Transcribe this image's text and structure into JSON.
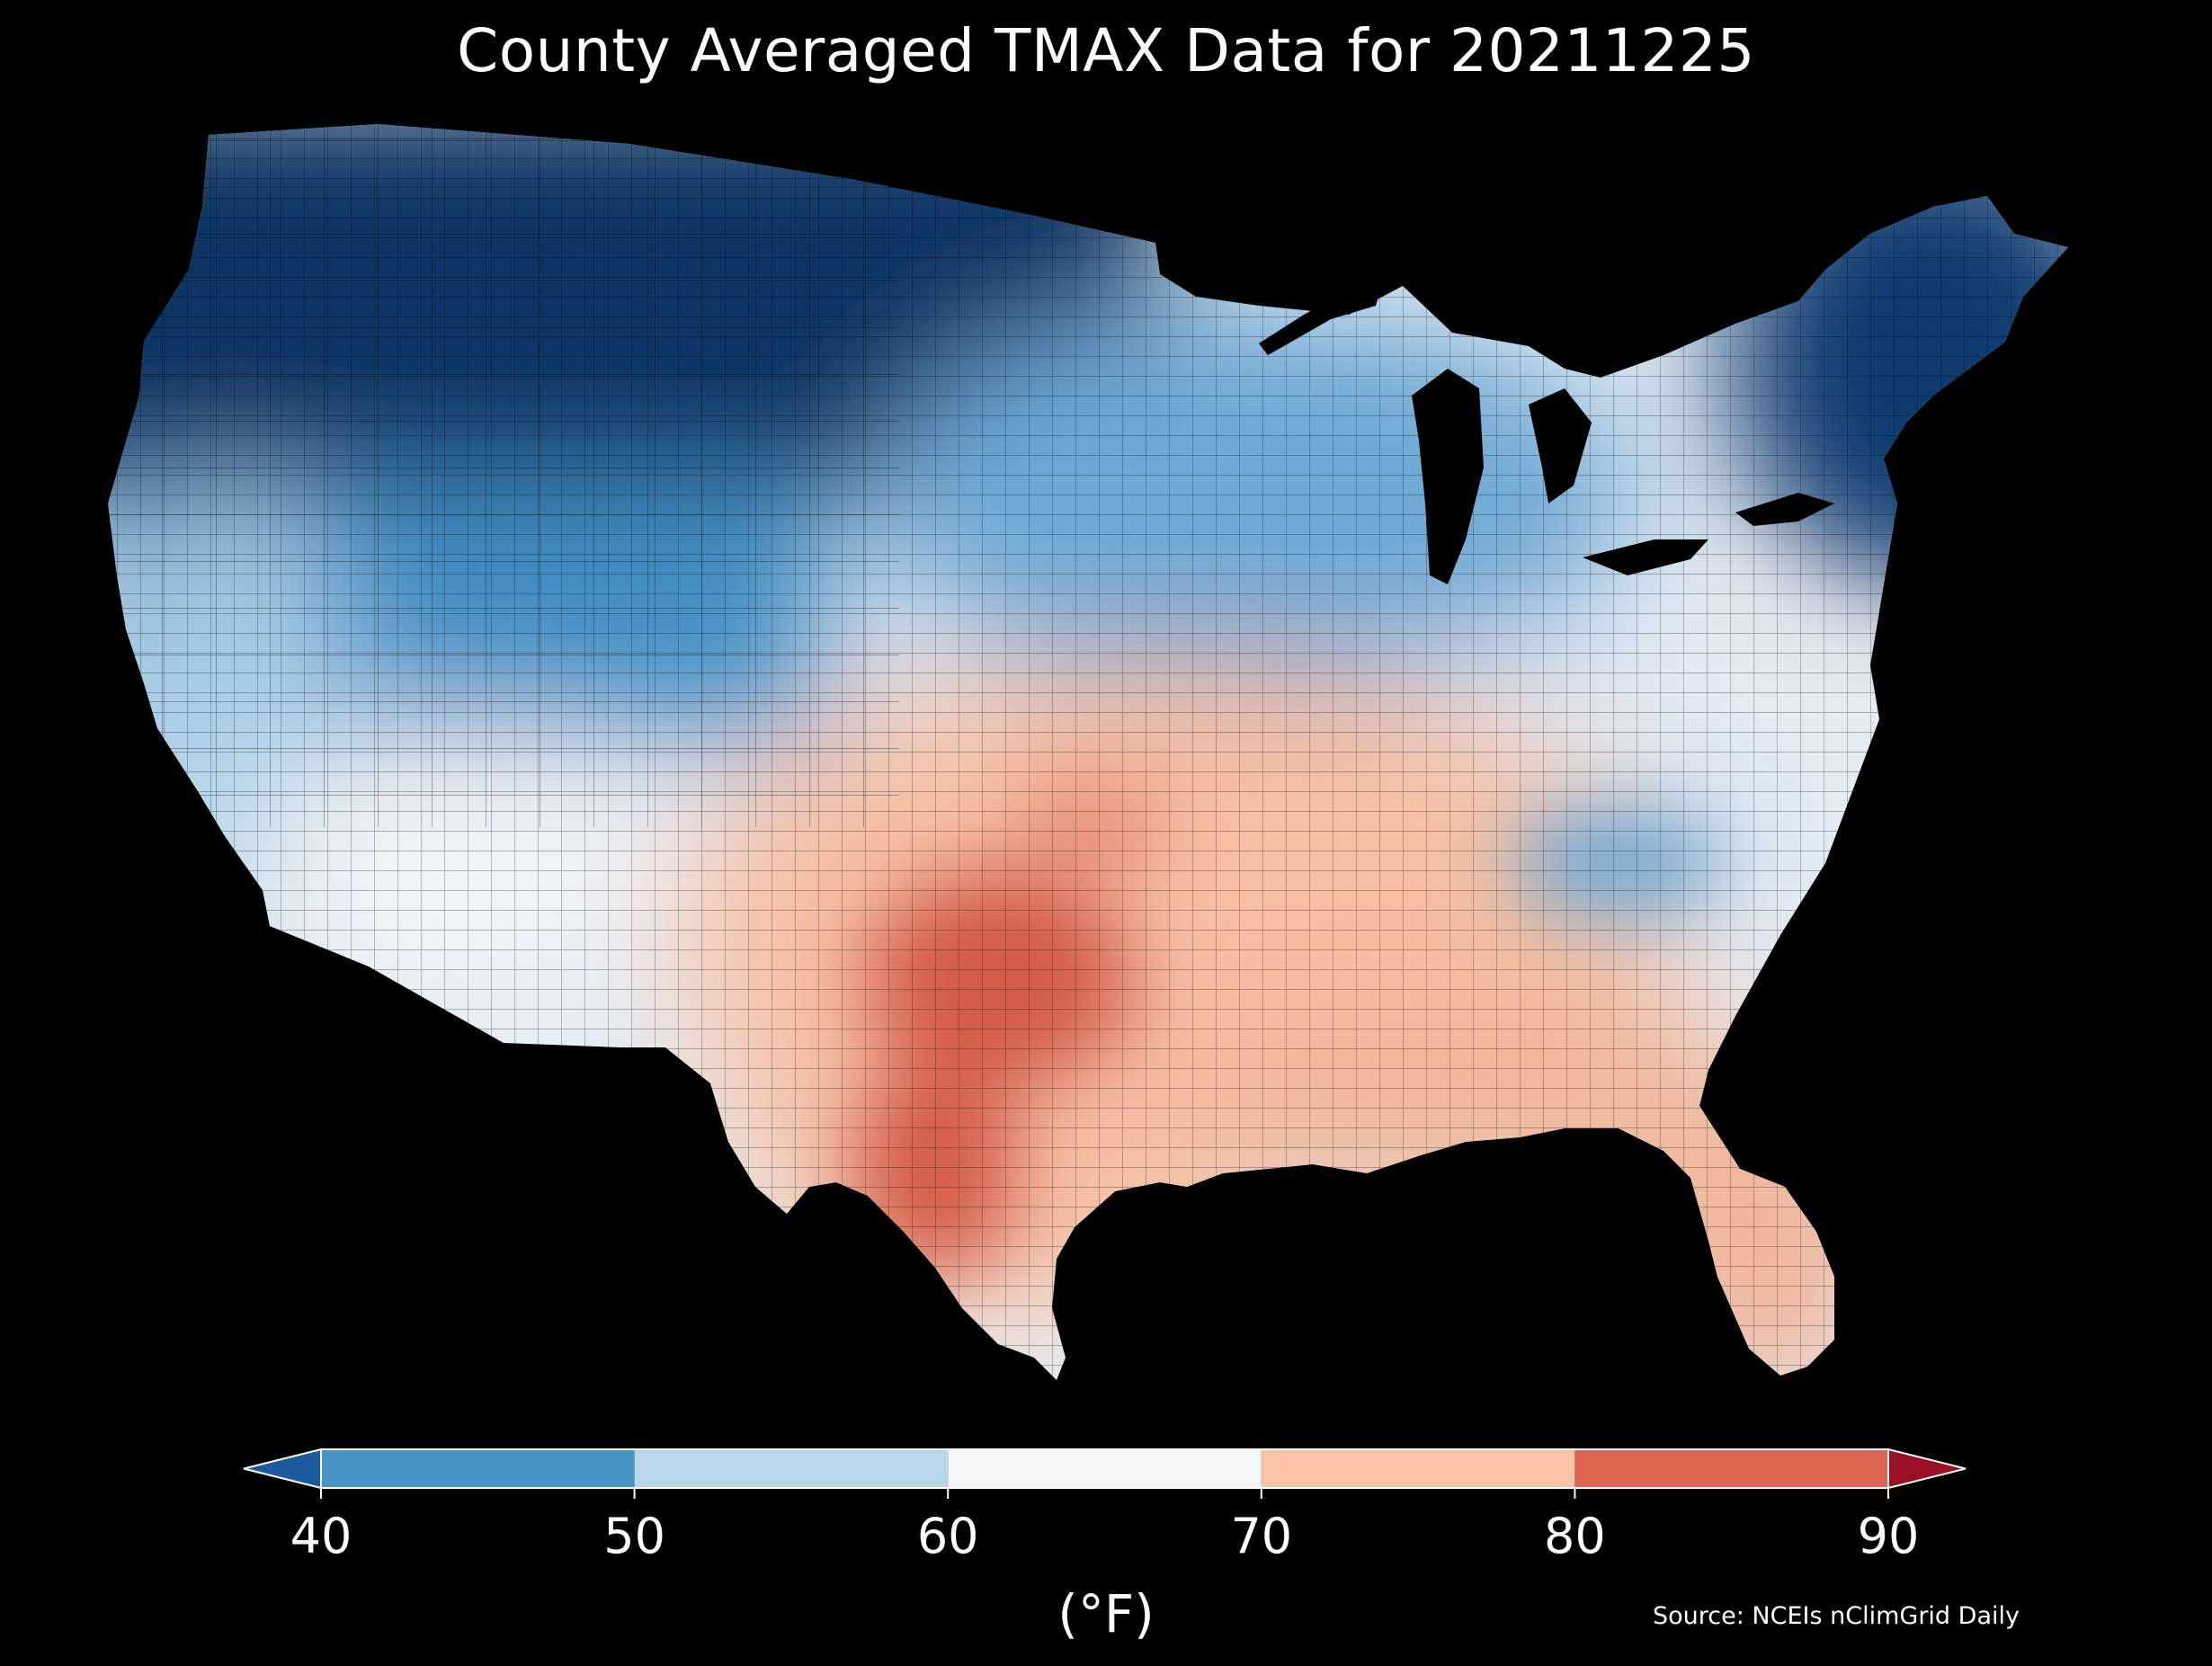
{
  "title": "County Averaged TMAX Data for 20211225",
  "source": "Source: NCEIs nClimGrid Daily",
  "legend": {
    "unit": "(°F)",
    "ticks": [
      "40",
      "50",
      "60",
      "70",
      "80",
      "90"
    ],
    "bins": [
      {
        "range": "<40",
        "color": "#1b5a9c"
      },
      {
        "range": "40-50",
        "color": "#4996c6"
      },
      {
        "range": "50-60",
        "color": "#b7d6ea"
      },
      {
        "range": "60-70",
        "color": "#f6f6f6"
      },
      {
        "range": "70-80",
        "color": "#f8c2a6"
      },
      {
        "range": "80-90",
        "color": "#dc6553"
      },
      {
        "range": ">90",
        "color": "#9b0f25"
      }
    ]
  },
  "map": {
    "region": "Contiguous United States",
    "units": "counties",
    "metric": "TMAX",
    "date": "20211225",
    "pattern": [
      {
        "area": "northern-plains-rockies",
        "color": "#0a3464"
      },
      {
        "area": "pacific-northwest",
        "color": "#1f5fa6"
      },
      {
        "area": "great-basin",
        "color": "#4590c4"
      },
      {
        "area": "california-coast",
        "color": "#a9cfe7"
      },
      {
        "area": "new-england",
        "color": "#0c3a70"
      },
      {
        "area": "great-lakes",
        "color": "#6fa9d4"
      },
      {
        "area": "ohio-valley-appalachia",
        "color": "#dfeaf4"
      },
      {
        "area": "southwest",
        "color": "#f3f4f6"
      },
      {
        "area": "southern-plains",
        "color": "#f6c0a3"
      },
      {
        "area": "texas-hotspot",
        "color": "#d35b4a"
      },
      {
        "area": "gulf-coast",
        "color": "#f0b79a"
      },
      {
        "area": "florida",
        "color": "#f1b092"
      }
    ]
  }
}
